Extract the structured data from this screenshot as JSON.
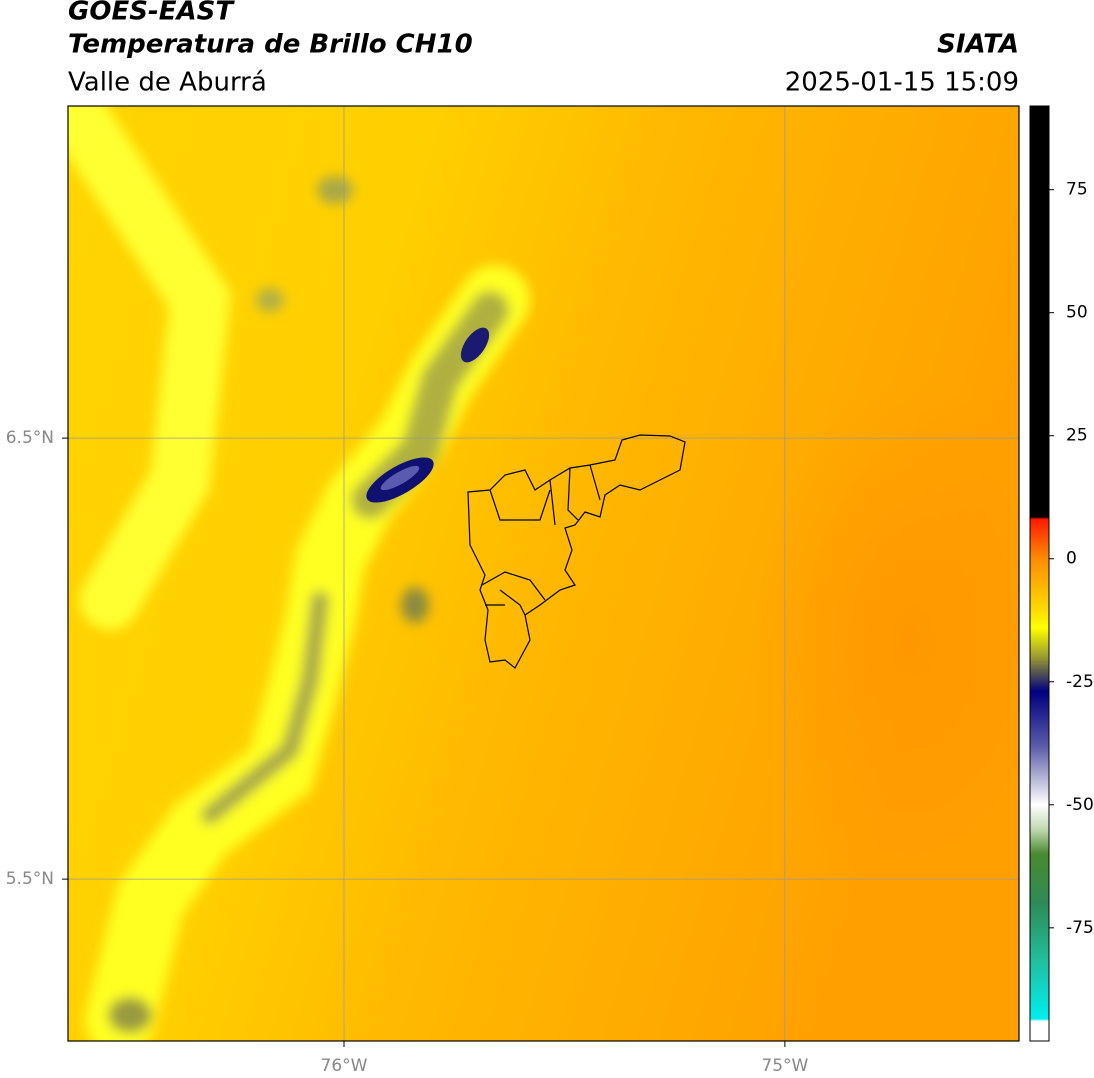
{
  "header": {
    "title": "GOES-EAST",
    "subtitle": "Temperatura de Brillo CH10",
    "region": "Valle de Aburrá",
    "source": "SIATA",
    "timestamp": "2025-01-15 15:09"
  },
  "map": {
    "xlim": [
      -76.626,
      -74.469
    ],
    "ylim": [
      5.133,
      7.253
    ],
    "xticks": [
      {
        "value": -76,
        "label": "76°W"
      },
      {
        "value": -75,
        "label": "75°W"
      }
    ],
    "yticks": [
      {
        "value": 6.5,
        "label": "6.5°N"
      },
      {
        "value": 5.5,
        "label": "5.5°N"
      }
    ],
    "grid": true
  },
  "colorbar": {
    "lim": [
      -98,
      92
    ],
    "ticks": [
      -75,
      -50,
      -25,
      0,
      25,
      50,
      75
    ],
    "stops": [
      {
        "value": 92,
        "color": "#000000"
      },
      {
        "value": 8.5,
        "color": "#000000"
      },
      {
        "value": 8,
        "color": "#ff1a00"
      },
      {
        "value": 0,
        "color": "#ff8c00"
      },
      {
        "value": -10,
        "color": "#ffd700"
      },
      {
        "value": -14,
        "color": "#ffff00"
      },
      {
        "value": -20,
        "color": "#9a9a30"
      },
      {
        "value": -27,
        "color": "#000080"
      },
      {
        "value": -38,
        "color": "#5a5aa8"
      },
      {
        "value": -50,
        "color": "#ffffff"
      },
      {
        "value": -55,
        "color": "#c0d8b0"
      },
      {
        "value": -60,
        "color": "#4a8a30"
      },
      {
        "value": -70,
        "color": "#2e8b57"
      },
      {
        "value": -82,
        "color": "#20c0a0"
      },
      {
        "value": -93.5,
        "color": "#00eeee"
      },
      {
        "value": -94,
        "color": "#ffffff"
      },
      {
        "value": -98,
        "color": "#ffffff"
      }
    ]
  }
}
